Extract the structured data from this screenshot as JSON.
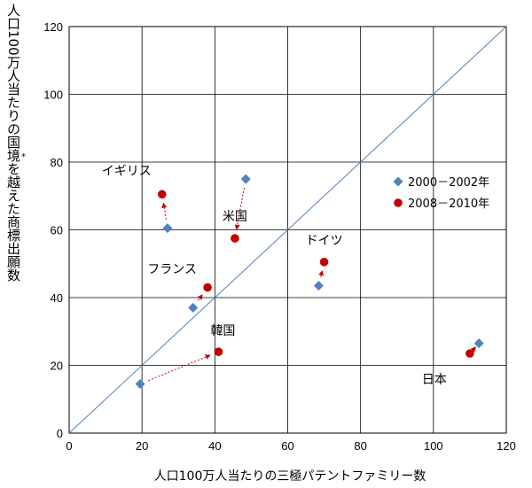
{
  "chart_data": {
    "type": "scatter",
    "xlabel": "人口100万人当たりの三極パテントファミリー数",
    "ylabel": "人口100万人当たりの国境を越えた商標出願数",
    "ylabel_mark": "*",
    "xlim": [
      0,
      120
    ],
    "ylim": [
      0,
      120
    ],
    "x_ticks": [
      0,
      20,
      40,
      60,
      80,
      100,
      120
    ],
    "y_ticks": [
      0,
      20,
      40,
      60,
      80,
      100,
      120
    ],
    "grid": true,
    "diagonal_reference_line": true,
    "legend_position": "right",
    "series": [
      {
        "name": "2000－2002年",
        "marker": "diamond",
        "color": "#4f81bd",
        "points": [
          {
            "label": "イギリス",
            "x": 27,
            "y": 60.5
          },
          {
            "label": "米国",
            "x": 48.5,
            "y": 75
          },
          {
            "label": "ドイツ",
            "x": 68.5,
            "y": 43.5
          },
          {
            "label": "フランス",
            "x": 34,
            "y": 37
          },
          {
            "label": "韓国",
            "x": 19.5,
            "y": 14.5
          },
          {
            "label": "日本",
            "x": 112.5,
            "y": 26.5
          }
        ]
      },
      {
        "name": "2008－2010年",
        "marker": "circle",
        "color": "#c00000",
        "points": [
          {
            "label": "イギリス",
            "x": 25.5,
            "y": 70.5
          },
          {
            "label": "米国",
            "x": 45.5,
            "y": 57.5
          },
          {
            "label": "ドイツ",
            "x": 70,
            "y": 50.5
          },
          {
            "label": "フランス",
            "x": 38,
            "y": 43
          },
          {
            "label": "韓国",
            "x": 41,
            "y": 24
          },
          {
            "label": "日本",
            "x": 110,
            "y": 23.5
          }
        ]
      }
    ],
    "country_labels": [
      "イギリス",
      "米国",
      "ドイツ",
      "フランス",
      "韓国",
      "日本"
    ]
  }
}
